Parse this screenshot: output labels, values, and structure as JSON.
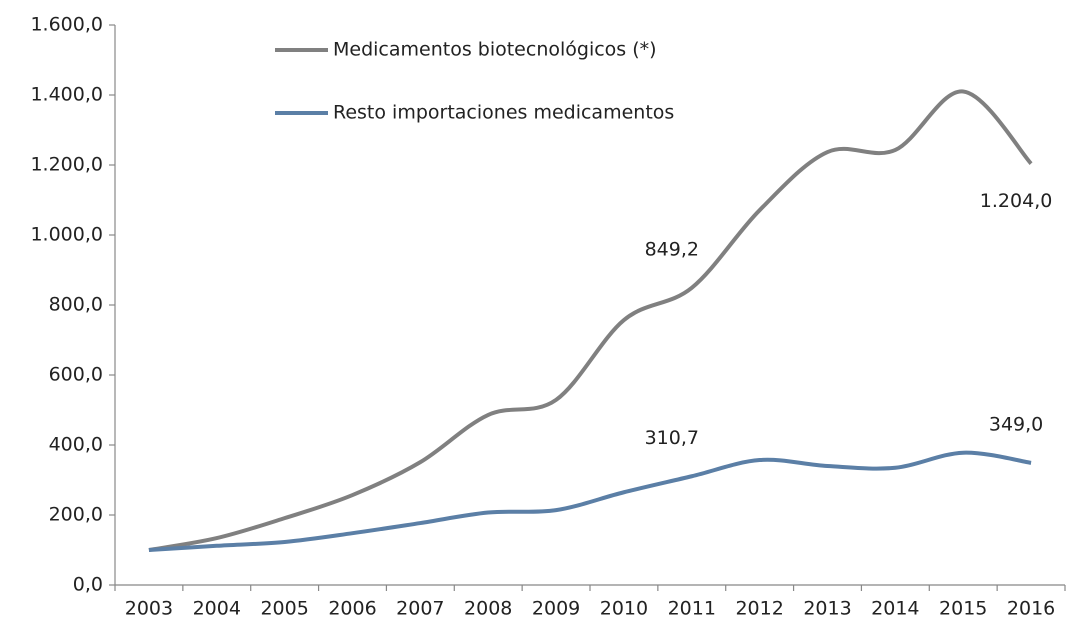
{
  "chart_data": {
    "type": "line",
    "categories": [
      "2003",
      "2004",
      "2005",
      "2006",
      "2007",
      "2008",
      "2009",
      "2010",
      "2011",
      "2012",
      "2013",
      "2014",
      "2015",
      "2016"
    ],
    "series": [
      {
        "name": "Medicamentos biotecnológicos (*)",
        "color": "#808080",
        "values": [
          100,
          134,
          191,
          257,
          351,
          486,
          529,
          757,
          849.2,
          1071,
          1237,
          1243,
          1410,
          1204.0
        ],
        "value_labels": [
          null,
          null,
          null,
          null,
          null,
          null,
          null,
          null,
          "849,2",
          null,
          null,
          null,
          null,
          "1.204,0"
        ]
      },
      {
        "name": "Resto importaciones medicamentos",
        "color": "#5b7fa6",
        "values": [
          100,
          112,
          123,
          148,
          177,
          207,
          214,
          265,
          310.7,
          357,
          340,
          335,
          378,
          349.0
        ],
        "value_labels": [
          null,
          null,
          null,
          null,
          null,
          null,
          null,
          null,
          "310,7",
          null,
          null,
          null,
          null,
          "349,0"
        ]
      }
    ],
    "ylim": [
      0,
      1600
    ],
    "yticks": [
      {
        "value": 0,
        "label": "0,0"
      },
      {
        "value": 200,
        "label": "200,0"
      },
      {
        "value": 400,
        "label": "400,0"
      },
      {
        "value": 600,
        "label": "600,0"
      },
      {
        "value": 800,
        "label": "800,0"
      },
      {
        "value": 1000,
        "label": "1.000,0"
      },
      {
        "value": 1200,
        "label": "1.200,0"
      },
      {
        "value": 1400,
        "label": "1.400,0"
      },
      {
        "value": 1600,
        "label": "1.600,0"
      }
    ],
    "grid": false,
    "legend": "top-left",
    "smooth": true
  }
}
